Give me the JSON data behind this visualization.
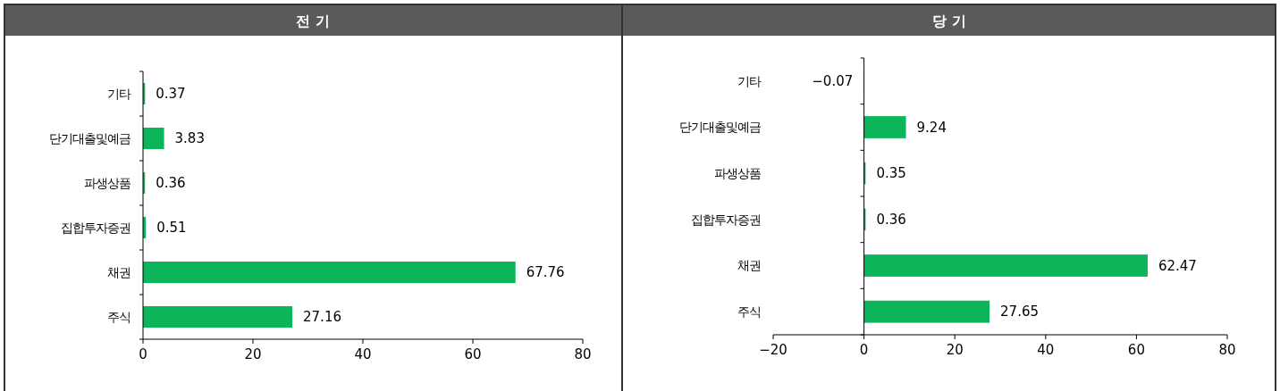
{
  "chart_data": [
    {
      "type": "bar",
      "title": "전 기",
      "orientation": "horizontal",
      "categories": [
        "기타",
        "단기대출및예금",
        "파생상품",
        "집합투자증권",
        "채권",
        "주식"
      ],
      "values": [
        0.37,
        3.83,
        0.36,
        0.51,
        67.76,
        27.16
      ],
      "color": "#0cb55a",
      "xlim": [
        0,
        80
      ],
      "xticks": [
        0,
        20,
        40,
        60,
        80
      ],
      "data_labels": true
    },
    {
      "type": "bar",
      "title": "당 기",
      "orientation": "horizontal",
      "categories": [
        "기타",
        "단기대출및예금",
        "파생상품",
        "집합투자증권",
        "채권",
        "주식"
      ],
      "values": [
        -0.07,
        9.24,
        0.35,
        0.36,
        62.47,
        27.65
      ],
      "color": "#0cb55a",
      "xlim": [
        -20,
        80
      ],
      "xticks": [
        -20,
        0,
        20,
        40,
        60,
        80
      ],
      "data_labels": true
    }
  ]
}
